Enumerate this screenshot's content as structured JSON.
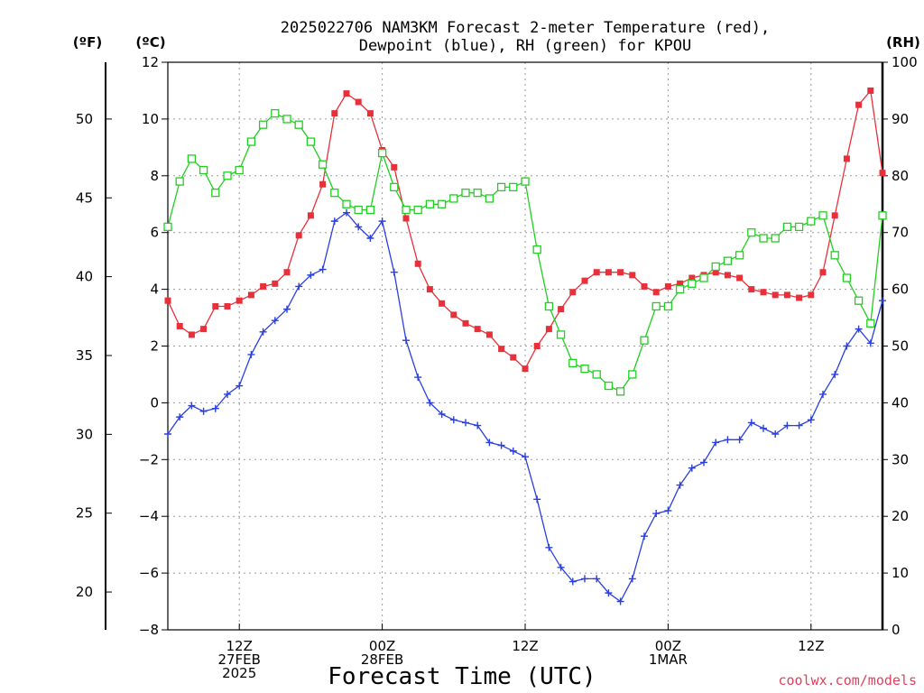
{
  "chart_data": {
    "type": "line",
    "title_line1": "2025022706 NAM3KM Forecast 2-meter Temperature (red),",
    "title_line2": "Dewpoint (blue), RH (green) for KPOU",
    "xlabel": "Forecast Time (UTC)",
    "credit": "coolwx.com/models",
    "unit_labels": {
      "fahrenheit": "(ºF)",
      "celsius": "(ºC)",
      "rh": "(RH)"
    },
    "x_ticks": [
      {
        "hour": 6,
        "lines": [
          "12Z",
          "27FEB",
          "2025"
        ]
      },
      {
        "hour": 18,
        "lines": [
          "00Z",
          "28FEB"
        ]
      },
      {
        "hour": 30,
        "lines": [
          "12Z"
        ]
      },
      {
        "hour": 42,
        "lines": [
          "00Z",
          "1MAR"
        ]
      },
      {
        "hour": 54,
        "lines": [
          "12Z"
        ]
      }
    ],
    "x_range_hours": [
      0,
      60
    ],
    "celsius_axis": {
      "range": [
        -8,
        12
      ],
      "ticks": [
        -8,
        -6,
        -4,
        -2,
        0,
        2,
        4,
        6,
        8,
        10,
        12
      ]
    },
    "fahrenheit_axis": {
      "ticks": [
        20,
        25,
        30,
        35,
        40,
        45,
        50
      ]
    },
    "rh_axis": {
      "range": [
        0,
        100
      ],
      "ticks": [
        0,
        10,
        20,
        30,
        40,
        50,
        60,
        70,
        80,
        90,
        100
      ]
    },
    "grid": true,
    "colors": {
      "temperature": "#e8303a",
      "dewpoint": "#2a3fe0",
      "rh": "#20d020"
    },
    "hours": [
      0,
      1,
      2,
      3,
      4,
      5,
      6,
      7,
      8,
      9,
      10,
      11,
      12,
      13,
      14,
      15,
      16,
      17,
      18,
      19,
      20,
      21,
      22,
      23,
      24,
      25,
      26,
      27,
      28,
      29,
      30,
      31,
      32,
      33,
      34,
      35,
      36,
      37,
      38,
      39,
      40,
      41,
      42,
      43,
      44,
      45,
      46,
      47,
      48,
      49,
      50,
      51,
      52,
      53,
      54,
      55,
      56,
      57,
      58,
      59,
      60
    ],
    "series": [
      {
        "name": "Temperature",
        "axis": "celsius",
        "marker": "filled-square",
        "values": [
          3.6,
          2.7,
          2.4,
          2.6,
          3.4,
          3.4,
          3.6,
          3.8,
          4.1,
          4.2,
          4.6,
          5.9,
          6.6,
          7.7,
          10.2,
          10.9,
          10.6,
          10.2,
          8.9,
          8.3,
          6.5,
          4.9,
          4.0,
          3.5,
          3.1,
          2.8,
          2.6,
          2.4,
          1.9,
          1.6,
          1.2,
          2.0,
          2.6,
          3.3,
          3.9,
          4.3,
          4.6,
          4.6,
          4.6,
          4.5,
          4.1,
          3.9,
          4.1,
          4.2,
          4.4,
          4.5,
          4.6,
          4.5,
          4.4,
          4.0,
          3.9,
          3.8,
          3.8,
          3.7,
          3.8,
          4.6,
          6.6,
          8.6,
          10.5,
          11.0,
          8.1
        ]
      },
      {
        "name": "Dewpoint",
        "axis": "celsius",
        "marker": "plus",
        "values": [
          -1.1,
          -0.5,
          -0.1,
          -0.3,
          -0.2,
          0.3,
          0.6,
          1.7,
          2.5,
          2.9,
          3.3,
          4.1,
          4.5,
          4.7,
          6.4,
          6.7,
          6.2,
          5.8,
          6.4,
          4.6,
          2.2,
          0.9,
          0.0,
          -0.4,
          -0.6,
          -0.7,
          -0.8,
          -1.4,
          -1.5,
          -1.7,
          -1.9,
          -3.4,
          -5.1,
          -5.8,
          -6.3,
          -6.2,
          -6.2,
          -6.7,
          -7.0,
          -6.2,
          -4.7,
          -3.9,
          -3.8,
          -2.9,
          -2.3,
          -2.1,
          -1.4,
          -1.3,
          -1.3,
          -0.7,
          -0.9,
          -1.1,
          -0.8,
          -0.8,
          -0.6,
          0.3,
          1.0,
          2.0,
          2.6,
          2.1,
          3.6
        ]
      },
      {
        "name": "RH",
        "axis": "rh",
        "marker": "open-square",
        "values": [
          71,
          79,
          83,
          81,
          77,
          80,
          81,
          86,
          89,
          91,
          90,
          89,
          86,
          82,
          77,
          75,
          74,
          74,
          84,
          78,
          74,
          74,
          75,
          75,
          76,
          77,
          77,
          76,
          78,
          78,
          79,
          67,
          57,
          52,
          47,
          46,
          45,
          43,
          42,
          45,
          51,
          57,
          57,
          60,
          61,
          62,
          64,
          65,
          66,
          70,
          69,
          69,
          71,
          71,
          72,
          73,
          66,
          62,
          58,
          54,
          73
        ]
      }
    ]
  }
}
